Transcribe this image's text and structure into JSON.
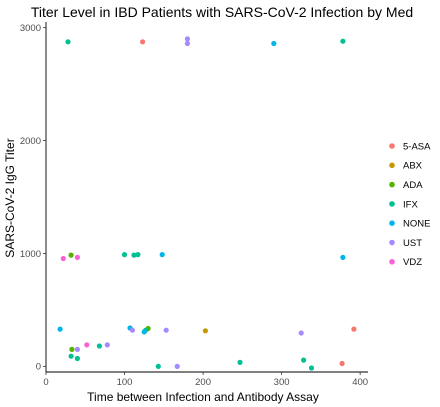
{
  "chart_data": {
    "type": "scatter",
    "title": "Titer Level in IBD Patients with SARS-CoV-2 Infection by Med",
    "xlabel": "Time between Infection and Antibody Assay",
    "ylabel": "SARS-CoV-2 IgG Titer",
    "xlim": [
      0,
      410
    ],
    "ylim": [
      -50,
      3050
    ],
    "xticks": [
      0,
      100,
      200,
      300,
      400
    ],
    "yticks": [
      0,
      1000,
      2000,
      3000
    ],
    "grid": false,
    "legend_position": "right",
    "series": [
      {
        "name": "5-ASA",
        "color": "#F8766D",
        "points": [
          [
            123,
            2875
          ],
          [
            392,
            330
          ],
          [
            377,
            25
          ]
        ]
      },
      {
        "name": "ABX",
        "color": "#C49A00",
        "points": [
          [
            203,
            315
          ]
        ]
      },
      {
        "name": "ADA",
        "color": "#53B400",
        "points": [
          [
            32,
            985
          ],
          [
            130,
            335
          ],
          [
            33,
            150
          ]
        ]
      },
      {
        "name": "IFX",
        "color": "#00C094",
        "points": [
          [
            28,
            2875
          ],
          [
            378,
            2880
          ],
          [
            100,
            990
          ],
          [
            112,
            985
          ],
          [
            117,
            990
          ],
          [
            127,
            320
          ],
          [
            68,
            180
          ],
          [
            32,
            90
          ],
          [
            40,
            70
          ],
          [
            143,
            0
          ],
          [
            247,
            35
          ],
          [
            328,
            55
          ],
          [
            338,
            -15
          ]
        ]
      },
      {
        "name": "NONE",
        "color": "#00B6EB",
        "points": [
          [
            290,
            2860
          ],
          [
            378,
            965
          ],
          [
            148,
            990
          ],
          [
            18,
            330
          ],
          [
            107,
            340
          ],
          [
            125,
            305
          ]
        ]
      },
      {
        "name": "UST",
        "color": "#A58AFF",
        "points": [
          [
            180,
            2900
          ],
          [
            180,
            2860
          ],
          [
            110,
            320
          ],
          [
            153,
            320
          ],
          [
            325,
            295
          ],
          [
            78,
            190
          ],
          [
            40,
            150
          ],
          [
            167,
            0
          ]
        ]
      },
      {
        "name": "VDZ",
        "color": "#FB61D7",
        "points": [
          [
            22,
            955
          ],
          [
            40,
            965
          ],
          [
            52,
            190
          ]
        ]
      }
    ]
  }
}
